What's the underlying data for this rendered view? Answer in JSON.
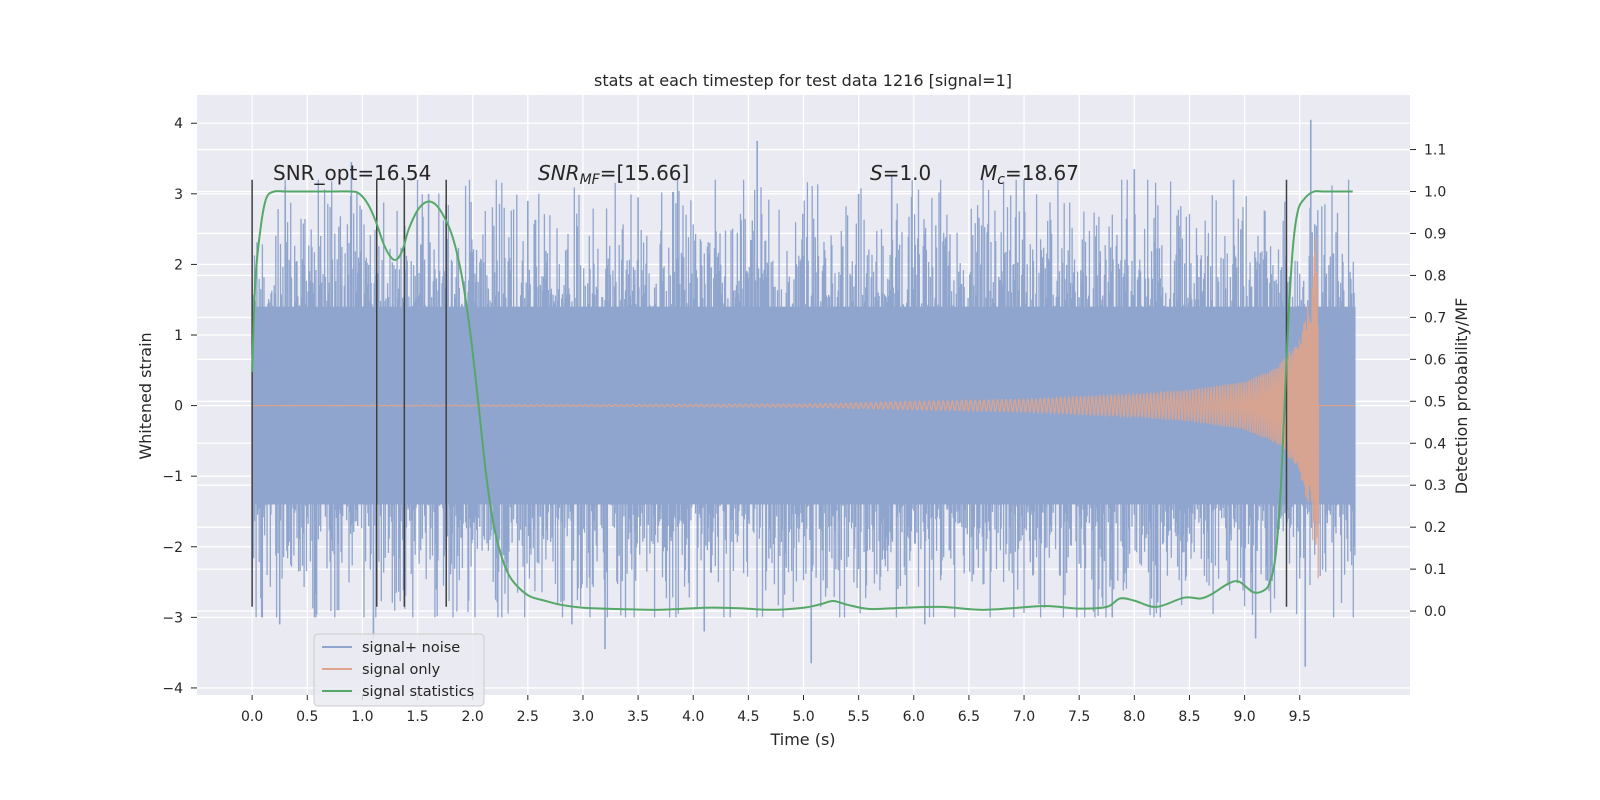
{
  "chart_data": {
    "type": "line",
    "title": "stats at each timestep for test data 1216 [signal=1]",
    "xlabel": "Time (s)",
    "ylabel": "Whitened strain",
    "ylabel_right": "Detection probability/MF",
    "xlim": [
      -0.5,
      10.5
    ],
    "ylim": [
      -4.1,
      4.4
    ],
    "ylim_right": [
      -0.2,
      1.23
    ],
    "grid": true,
    "x_ticks": [
      0.0,
      0.5,
      1.0,
      1.5,
      2.0,
      2.5,
      3.0,
      3.5,
      4.0,
      4.5,
      5.0,
      5.5,
      6.0,
      6.5,
      7.0,
      7.5,
      8.0,
      8.5,
      9.0,
      9.5
    ],
    "x_tick_labels": [
      "0.0",
      "0.5",
      "1.0",
      "1.5",
      "2.0",
      "2.5",
      "3.0",
      "3.5",
      "4.0",
      "4.5",
      "5.0",
      "5.5",
      "6.0",
      "6.5",
      "7.0",
      "7.5",
      "8.0",
      "8.5",
      "9.0",
      "9.5"
    ],
    "y_ticks": [
      -4,
      -3,
      -2,
      -1,
      0,
      1,
      2,
      3,
      4
    ],
    "y_tick_labels": [
      "−4",
      "−3",
      "−2",
      "−1",
      "0",
      "1",
      "2",
      "3",
      "4"
    ],
    "y_right_ticks": [
      0.0,
      0.1,
      0.2,
      0.3,
      0.4,
      0.5,
      0.6,
      0.7,
      0.8,
      0.9,
      1.0,
      1.1
    ],
    "y_right_tick_labels": [
      "0.0",
      "0.1",
      "0.2",
      "0.3",
      "0.4",
      "0.5",
      "0.6",
      "0.7",
      "0.8",
      "0.9",
      "1.0",
      "1.1"
    ],
    "legend": {
      "placement": "lower-left",
      "entries": [
        "signal+ noise",
        "signal only",
        "signal statistics"
      ]
    },
    "annotations": {
      "snr_opt": "SNR_opt=16.54",
      "snr_mf_italic": "SNR",
      "snr_mf_sub": "MF",
      "snr_mf_value": "=[15.66]",
      "s_italic": "S",
      "s_value": "=1.0",
      "mc_italic": "M",
      "mc_sub": "c",
      "mc_value": "=18.67"
    },
    "vlines_x": [
      0.0,
      1.13,
      1.38,
      1.76,
      9.38
    ],
    "vlines_y_range": [
      -2.85,
      3.2
    ],
    "series": [
      {
        "name": "signal+ noise",
        "color": "#8fa5cd",
        "x_range": [
          0.0,
          10.0
        ],
        "mean": 0.0,
        "typical_envelope": [
          -1.4,
          1.4
        ],
        "peaks_x": [
          0.3,
          0.9,
          1.6,
          2.5,
          3.5,
          4.58,
          5.5,
          5.8,
          7.0,
          8.0,
          8.9,
          9.6
        ],
        "peaks_y": [
          3.1,
          3.45,
          3.0,
          2.9,
          2.95,
          3.75,
          3.0,
          3.25,
          3.2,
          3.35,
          3.2,
          4.05
        ],
        "troughs_x": [
          0.25,
          1.1,
          2.9,
          3.2,
          4.1,
          5.07,
          6.1,
          7.8,
          9.1,
          9.55
        ],
        "troughs_y": [
          -3.1,
          -3.3,
          -3.1,
          -3.45,
          -3.2,
          -3.65,
          -3.1,
          -3.0,
          -3.3,
          -3.7
        ]
      },
      {
        "name": "signal only",
        "color": "#e0a48c",
        "x_range": [
          0.0,
          10.0
        ],
        "chirp_envelope_x": [
          0.0,
          5.0,
          6.0,
          7.0,
          8.0,
          8.5,
          9.0,
          9.3,
          9.5,
          9.6,
          9.67
        ],
        "chirp_envelope_y": [
          0.0,
          0.02,
          0.06,
          0.09,
          0.16,
          0.22,
          0.34,
          0.55,
          0.95,
          1.6,
          2.85
        ]
      },
      {
        "name": "signal statistics",
        "color": "#55a868",
        "axis": "right",
        "x": [
          0.0,
          0.03,
          0.08,
          0.13,
          0.2,
          0.3,
          0.45,
          0.6,
          0.75,
          0.9,
          0.97,
          1.05,
          1.12,
          1.2,
          1.27,
          1.32,
          1.37,
          1.42,
          1.5,
          1.58,
          1.66,
          1.74,
          1.82,
          1.9,
          1.97,
          2.02,
          2.07,
          2.12,
          2.18,
          2.25,
          2.33,
          2.42,
          2.52,
          2.65,
          2.8,
          3.0,
          3.3,
          3.7,
          4.1,
          4.4,
          4.7,
          5.0,
          5.15,
          5.27,
          5.4,
          5.6,
          5.9,
          6.25,
          6.6,
          6.9,
          7.2,
          7.5,
          7.75,
          7.87,
          8.0,
          8.2,
          8.45,
          8.6,
          8.7,
          8.85,
          8.95,
          9.08,
          9.18,
          9.23,
          9.28,
          9.33,
          9.38,
          9.43,
          9.48,
          9.55,
          9.63,
          9.7,
          9.78,
          9.9,
          9.98
        ],
        "y": [
          0.57,
          0.79,
          0.92,
          0.985,
          1.0,
          1.0,
          1.0,
          1.0,
          1.0,
          1.0,
          0.995,
          0.97,
          0.93,
          0.87,
          0.84,
          0.84,
          0.865,
          0.91,
          0.955,
          0.975,
          0.97,
          0.94,
          0.89,
          0.8,
          0.68,
          0.57,
          0.45,
          0.33,
          0.22,
          0.14,
          0.085,
          0.055,
          0.035,
          0.025,
          0.015,
          0.008,
          0.005,
          0.003,
          0.008,
          0.007,
          0.003,
          0.008,
          0.016,
          0.024,
          0.015,
          0.005,
          0.008,
          0.01,
          0.003,
          0.007,
          0.012,
          0.006,
          0.01,
          0.03,
          0.025,
          0.01,
          0.032,
          0.03,
          0.04,
          0.065,
          0.07,
          0.045,
          0.05,
          0.07,
          0.13,
          0.3,
          0.6,
          0.84,
          0.95,
          0.985,
          1.0,
          1.0,
          1.0,
          1.0,
          1.0
        ]
      }
    ]
  }
}
